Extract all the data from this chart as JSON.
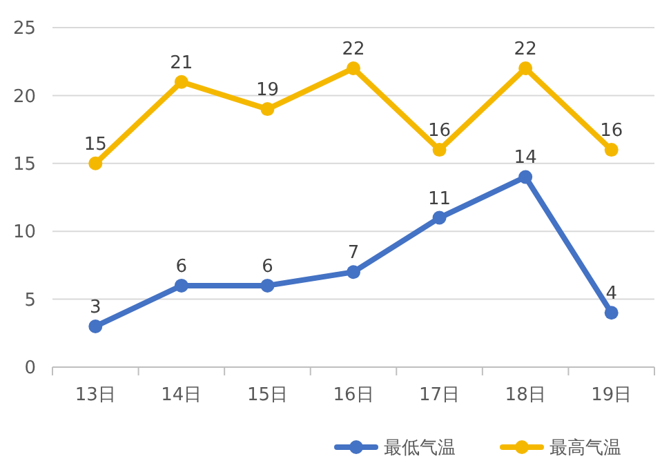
{
  "chart_data": {
    "type": "line",
    "categories": [
      "13日",
      "14日",
      "15日",
      "16日",
      "17日",
      "18日",
      "19日"
    ],
    "series": [
      {
        "name": "最低气温",
        "color": "#4472c4",
        "values": [
          3,
          6,
          6,
          7,
          11,
          14,
          4
        ]
      },
      {
        "name": "最高气温",
        "color": "#f5b800",
        "values": [
          15,
          21,
          19,
          22,
          16,
          22,
          16
        ]
      }
    ],
    "ylim": [
      0,
      25
    ],
    "yticks": [
      0,
      5,
      10,
      15,
      20,
      25
    ],
    "grid": "y",
    "legend": "bottom right",
    "marker": "circle",
    "line_style": "solid",
    "data_labels": true
  }
}
